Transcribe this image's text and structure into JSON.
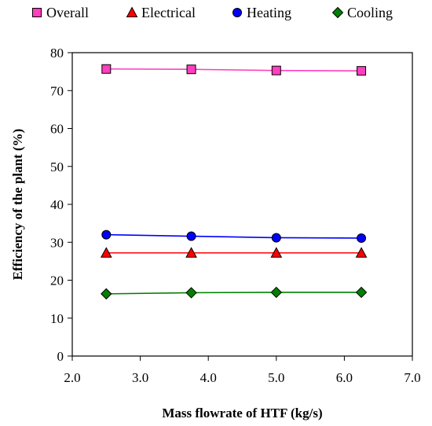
{
  "chart_data": {
    "type": "line",
    "x": [
      2.5,
      3.75,
      5.0,
      6.25
    ],
    "series": [
      {
        "name": "Overall",
        "marker": "square",
        "color": "#ff3fbf",
        "line_color": "#ff3fbf",
        "values": [
          75.7,
          75.6,
          75.3,
          75.2
        ]
      },
      {
        "name": "Electrical",
        "marker": "triangle",
        "color": "#ff0000",
        "line_color": "#ff0000",
        "values": [
          27.2,
          27.2,
          27.2,
          27.2
        ]
      },
      {
        "name": "Heating",
        "marker": "circle",
        "color": "#0000ff",
        "line_color": "#0000ff",
        "values": [
          32.0,
          31.6,
          31.2,
          31.1
        ]
      },
      {
        "name": "Cooling",
        "marker": "diamond",
        "color": "#008000",
        "line_color": "#008000",
        "values": [
          16.4,
          16.7,
          16.8,
          16.8
        ]
      }
    ],
    "xlabel": "Mass flowrate of HTF (kg/s)",
    "ylabel": "Efficiency of the plant (%)",
    "xlim": [
      2.0,
      7.0
    ],
    "ylim": [
      0,
      80
    ],
    "xticks": [
      "2.0",
      "3.0",
      "4.0",
      "5.0",
      "6.0",
      "7.0"
    ],
    "yticks": [
      "0",
      "10",
      "20",
      "30",
      "40",
      "50",
      "60",
      "70",
      "80"
    ],
    "grid": false,
    "legend_position": "top"
  }
}
